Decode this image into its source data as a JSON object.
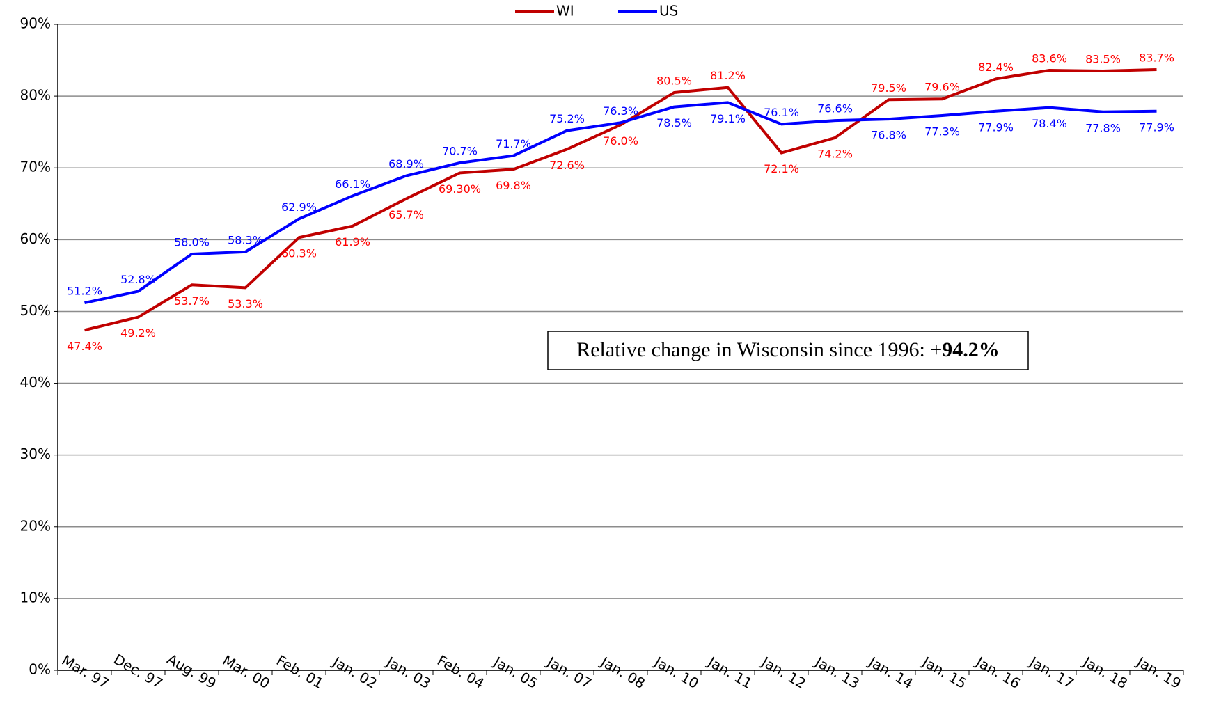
{
  "chart_data": {
    "type": "line",
    "categories": [
      "Mar. 97",
      "Dec. 97",
      "Aug. 99",
      "Mar. 00",
      "Feb. 01",
      "Jan. 02",
      "Jan. 03",
      "Feb. 04",
      "Jan. 05",
      "Jan. 07",
      "Jan. 08",
      "Jan. 10",
      "Jan. 11",
      "Jan. 12",
      "Jan. 13",
      "Jan. 14",
      "Jan. 15",
      "Jan. 16",
      "Jan. 17",
      "Jan. 18",
      "Jan. 19"
    ],
    "series": [
      {
        "name": "WI",
        "color": "#c00000",
        "label_color": "#ff0000",
        "values": [
          47.4,
          49.2,
          53.7,
          53.3,
          60.3,
          61.9,
          65.7,
          69.3,
          69.8,
          72.6,
          76.0,
          80.5,
          81.2,
          72.1,
          74.2,
          79.5,
          79.6,
          82.4,
          83.6,
          83.5,
          83.7
        ],
        "value_labels": [
          "47.4%",
          "49.2%",
          "53.7%",
          "53.3%",
          "60.3%",
          "61.9%",
          "65.7%",
          "69.30%",
          "69.8%",
          "72.6%",
          "76.0%",
          "80.5%",
          "81.2%",
          "72.1%",
          "74.2%",
          "79.5%",
          "79.6%",
          "82.4%",
          "83.6%",
          "83.5%",
          "83.7%"
        ]
      },
      {
        "name": "US",
        "color": "#0000ff",
        "label_color": "#0000ff",
        "values": [
          51.2,
          52.8,
          58.0,
          58.3,
          62.9,
          66.1,
          68.9,
          70.7,
          71.7,
          75.2,
          76.3,
          78.5,
          79.1,
          76.1,
          76.6,
          76.8,
          77.3,
          77.9,
          78.4,
          77.8,
          77.9
        ],
        "value_labels": [
          "51.2%",
          "52.8%",
          "58.0%",
          "58.3%",
          "62.9%",
          "66.1%",
          "68.9%",
          "70.7%",
          "71.7%",
          "75.2%",
          "76.3%",
          "78.5%",
          "79.1%",
          "76.1%",
          "76.6%",
          "76.8%",
          "77.3%",
          "77.9%",
          "78.4%",
          "77.8%",
          "77.9%"
        ]
      }
    ],
    "ylim": [
      0,
      90
    ],
    "yticks": [
      {
        "value": 0,
        "label": "0%"
      },
      {
        "value": 10,
        "label": "10%"
      },
      {
        "value": 20,
        "label": "20%"
      },
      {
        "value": 30,
        "label": "30%"
      },
      {
        "value": 40,
        "label": "40%"
      },
      {
        "value": 50,
        "label": "50%"
      },
      {
        "value": 60,
        "label": "60%"
      },
      {
        "value": 70,
        "label": "70%"
      },
      {
        "value": 80,
        "label": "80%"
      },
      {
        "value": 90,
        "label": "90%"
      }
    ],
    "grid": true,
    "legend": "top",
    "annotation": {
      "text": "Relative change in Wisconsin since 1996: +",
      "bold": "94.2%"
    }
  }
}
